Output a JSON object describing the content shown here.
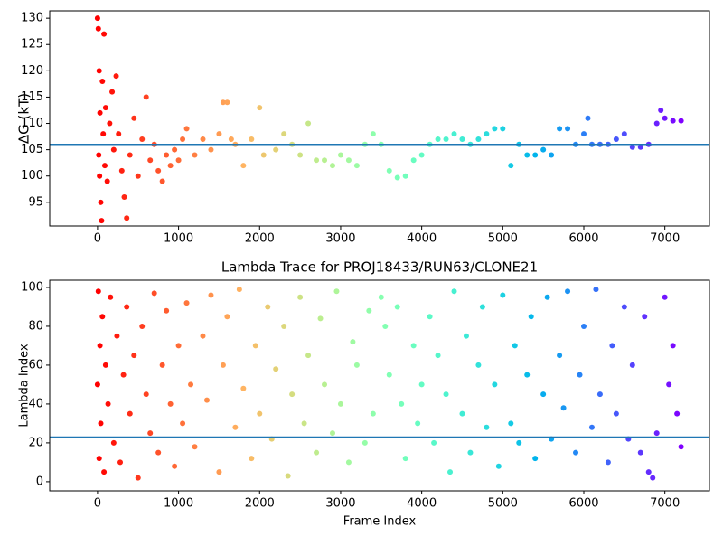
{
  "chart_data": [
    {
      "type": "scatter",
      "ylabel": "ΔG (kT)",
      "colormap": "rainbow_r",
      "hline": 106,
      "hline_color": "#1f77b4",
      "xlim": [
        -590,
        7550
      ],
      "ylim": [
        90.5,
        131.4
      ],
      "xticks": [
        0,
        1000,
        2000,
        3000,
        4000,
        5000,
        6000,
        7000
      ],
      "yticks": [
        95,
        100,
        105,
        110,
        115,
        120,
        125,
        130
      ],
      "x": [
        0,
        10,
        20,
        30,
        15,
        25,
        40,
        50,
        60,
        70,
        80,
        90,
        100,
        120,
        150,
        180,
        200,
        230,
        260,
        300,
        330,
        360,
        400,
        450,
        500,
        550,
        600,
        650,
        700,
        750,
        800,
        850,
        900,
        950,
        1000,
        1050,
        1100,
        1200,
        1300,
        1400,
        1500,
        1550,
        1600,
        1650,
        1700,
        1800,
        1900,
        2000,
        2050,
        2200,
        2300,
        2400,
        2500,
        2600,
        2700,
        2800,
        2900,
        3000,
        3100,
        3200,
        3300,
        3400,
        3500,
        3600,
        3700,
        3800,
        3900,
        4000,
        4100,
        4200,
        4300,
        4400,
        4500,
        4600,
        4700,
        4800,
        4900,
        5000,
        5100,
        5200,
        5300,
        5400,
        5500,
        5600,
        5700,
        5800,
        5900,
        6000,
        6050,
        6100,
        6200,
        6300,
        6400,
        6500,
        6600,
        6700,
        6800,
        6900,
        6950,
        7000,
        7100,
        7200
      ],
      "values": [
        130,
        128,
        120,
        112,
        104,
        100,
        95,
        91.5,
        118,
        108,
        127,
        102,
        113,
        99,
        110,
        116,
        105,
        119,
        108,
        101,
        96,
        92,
        104,
        111,
        100,
        107,
        115,
        103,
        106,
        101,
        99,
        104,
        102,
        105,
        103,
        107,
        109,
        104,
        107,
        105,
        108,
        114,
        114,
        107,
        106,
        102,
        107,
        113,
        104,
        105,
        108,
        106,
        104,
        110,
        103,
        103,
        102,
        104,
        103,
        102,
        106,
        108,
        106,
        101,
        99.7,
        100,
        103,
        104,
        106,
        107,
        107,
        108,
        107,
        106,
        107,
        108,
        109,
        109,
        102,
        106,
        104,
        104,
        105,
        104,
        109,
        109,
        106,
        108,
        111,
        106,
        106,
        106,
        107,
        108,
        105.5,
        105.5,
        106,
        110,
        112.5,
        111,
        110.5,
        110.5
      ]
    },
    {
      "type": "scatter",
      "title": "Lambda Trace for PROJ18433/RUN63/CLONE21",
      "xlabel": "Frame Index",
      "ylabel": "Lambda Index",
      "colormap": "rainbow_r",
      "hline": 23,
      "hline_color": "#1f77b4",
      "xlim": [
        -590,
        7550
      ],
      "ylim": [
        -4.7,
        103.7
      ],
      "xticks": [
        0,
        1000,
        2000,
        3000,
        4000,
        5000,
        6000,
        7000
      ],
      "yticks": [
        0,
        20,
        40,
        60,
        80,
        100
      ],
      "x": [
        0,
        10,
        20,
        30,
        40,
        60,
        80,
        100,
        130,
        160,
        200,
        240,
        280,
        320,
        360,
        400,
        450,
        500,
        550,
        600,
        650,
        700,
        750,
        800,
        850,
        900,
        950,
        1000,
        1050,
        1100,
        1150,
        1200,
        1300,
        1350,
        1400,
        1500,
        1550,
        1600,
        1700,
        1750,
        1800,
        1900,
        1950,
        2000,
        2100,
        2150,
        2200,
        2300,
        2350,
        2400,
        2500,
        2550,
        2600,
        2700,
        2750,
        2800,
        2900,
        2950,
        3000,
        3100,
        3150,
        3200,
        3300,
        3350,
        3400,
        3500,
        3550,
        3600,
        3700,
        3750,
        3800,
        3900,
        3950,
        4000,
        4100,
        4150,
        4200,
        4300,
        4350,
        4400,
        4500,
        4550,
        4600,
        4700,
        4750,
        4800,
        4900,
        4950,
        5000,
        5100,
        5150,
        5200,
        5300,
        5350,
        5400,
        5500,
        5550,
        5600,
        5700,
        5750,
        5800,
        5900,
        5950,
        6000,
        6100,
        6150,
        6200,
        6300,
        6350,
        6400,
        6500,
        6550,
        6600,
        6700,
        6750,
        6800,
        6850,
        6900,
        7000,
        7050,
        7100,
        7150,
        7200
      ],
      "values": [
        50,
        98,
        12,
        70,
        30,
        85,
        5,
        60,
        40,
        95,
        20,
        75,
        10,
        55,
        90,
        35,
        65,
        2,
        80,
        45,
        25,
        97,
        15,
        60,
        88,
        40,
        8,
        70,
        30,
        92,
        50,
        18,
        75,
        42,
        96,
        5,
        60,
        85,
        28,
        99,
        48,
        12,
        70,
        35,
        90,
        22,
        58,
        80,
        3,
        45,
        95,
        30,
        65,
        15,
        84,
        50,
        25,
        98,
        40,
        10,
        72,
        60,
        20,
        88,
        35,
        95,
        80,
        55,
        90,
        40,
        12,
        70,
        30,
        50,
        85,
        20,
        65,
        45,
        5,
        98,
        35,
        75,
        15,
        60,
        90,
        28,
        50,
        8,
        96,
        30,
        70,
        20,
        55,
        85,
        12,
        45,
        95,
        22,
        65,
        38,
        98,
        15,
        55,
        80,
        28,
        99,
        45,
        10,
        70,
        35,
        90,
        22,
        60,
        15,
        85,
        5,
        2,
        25,
        95,
        50,
        70,
        35,
        18
      ]
    }
  ]
}
